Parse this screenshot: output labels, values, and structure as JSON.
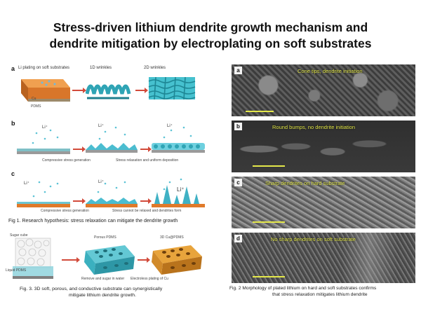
{
  "title": {
    "line1": "Stress-driven lithium dendrite growth mechanism and",
    "line2": "dendrite mitigation by electroplating on soft substrates"
  },
  "fig1": {
    "panel_a": {
      "label": "a",
      "step1": "Li plating on soft substrates",
      "step2": "1D wrinkles",
      "step3": "2D wrinkles",
      "cu": "Cu",
      "pdms": "PDMS"
    },
    "panel_b": {
      "label": "b",
      "ion": "Li⁺",
      "caption_left": "Compressive stress generation",
      "caption_right": "Stress relaxation and uniform deposition"
    },
    "panel_c": {
      "label": "c",
      "ion": "Li⁺",
      "caption_left": "Compressive stress generation",
      "caption_right": "Stress cannot be relaxed and dendrites form"
    },
    "caption": "Fig 1. Research hypothesis: stress relaxation can mitigate the dendrite growth"
  },
  "fig3": {
    "sugar_label": "Sugar cube",
    "pdms_label": "Liquid PDMS",
    "porous_label": "Porous PDMS",
    "cu_label": "3D Cu@PDMS",
    "step1": "Remove and sugar in water",
    "step2": "Electroless plating of Cu",
    "caption_line1": "Fig. 3. 3D soft, porous, and conductive substrate can synergistically",
    "caption_line2": "mitigate lithium dendrite growth."
  },
  "fig2": {
    "images": [
      {
        "label": "a",
        "text": "Cone tips, dendrite initiation"
      },
      {
        "label": "b",
        "text": "Round bumps, no dendrite initiation"
      },
      {
        "label": "c",
        "text": "Sharp dendrites on hard substrate"
      },
      {
        "label": "d",
        "text": "No sharp dendrites on soft substrate"
      }
    ],
    "caption_line1": "Fig. 2 Morphology of plated lithium on hard and soft substrates confirms",
    "caption_line2": "that stress relaxation mitigates lithium dendrite"
  },
  "colors": {
    "title": "#111111",
    "pdms_orange": "#e07a2a",
    "cu_plate": "#c79a4b",
    "wrinkle_teal": "#3fb9c7",
    "arrow": "#d24a3a",
    "sem_text": "#e4e84a"
  }
}
